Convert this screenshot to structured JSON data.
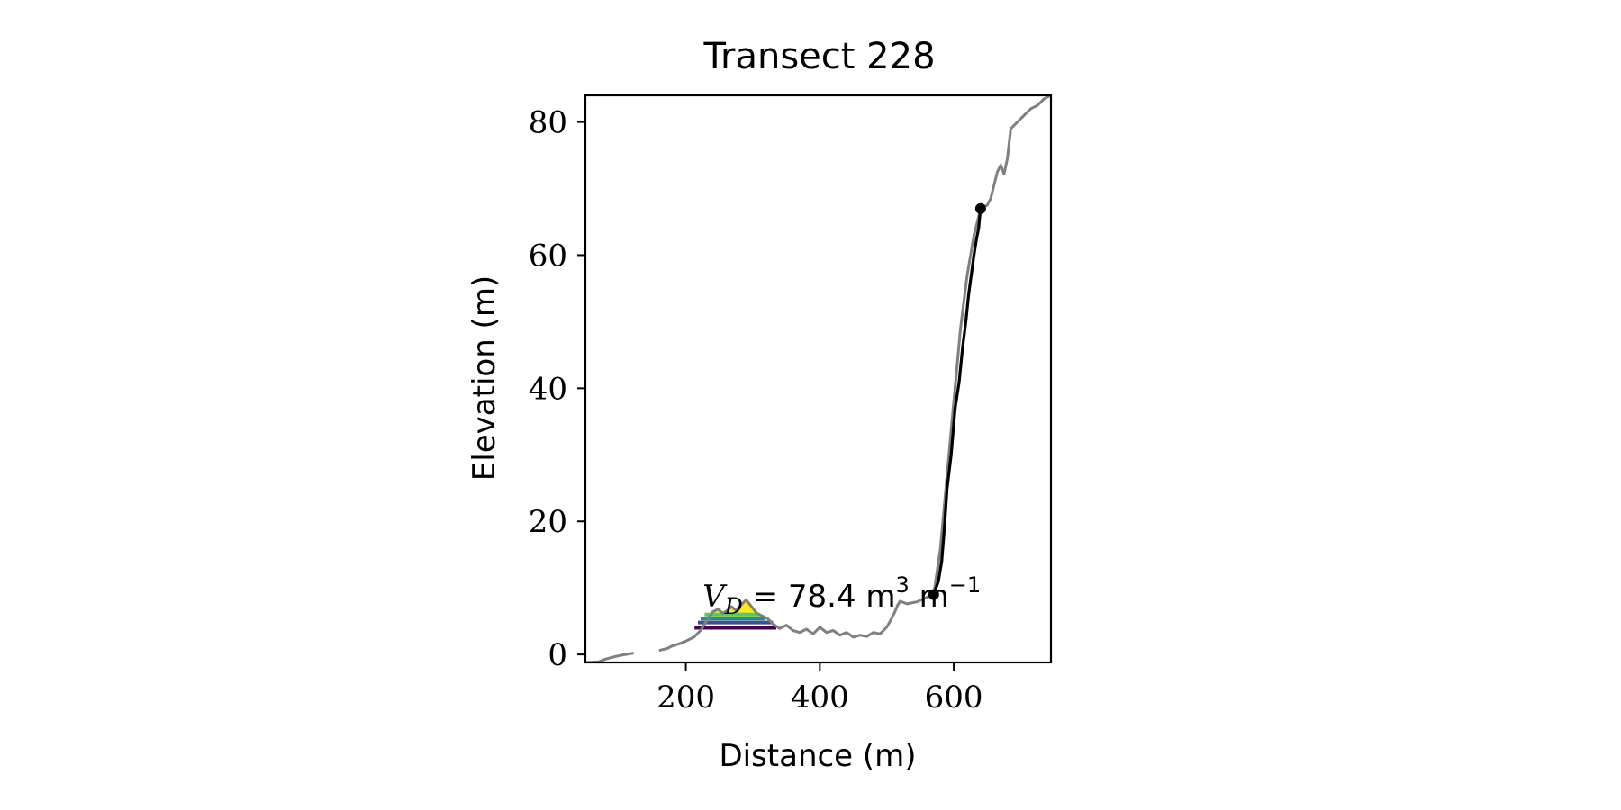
{
  "chart_data": {
    "type": "line",
    "title": "Transect 228",
    "xlabel": "Distance (m)",
    "ylabel": "Elevation (m)",
    "xlim": [
      50,
      745
    ],
    "ylim": [
      -1.2,
      84
    ],
    "xticks": [
      200,
      400,
      600
    ],
    "yticks": [
      0,
      20,
      40,
      60,
      80
    ],
    "grid": false,
    "annotation": {
      "symbol": "V",
      "subscript": "D",
      "text": "= 78.4 m",
      "exp1": "3",
      "unit2": "m",
      "exp2": "−1",
      "x": 225,
      "y": 7.2
    },
    "colors": {
      "profile": "#808080",
      "fit": "#000000",
      "shade": "#cccccc",
      "levels": [
        "#440154",
        "#21918c",
        "#3b528b",
        "#5ec962",
        "#fde725"
      ]
    },
    "series": [
      {
        "role": "profile-segment-1",
        "x": [
          50,
          70,
          80,
          95,
          110,
          122
        ],
        "y": [
          -1.2,
          -1.1,
          -0.7,
          -0.3,
          0.0,
          0.2
        ]
      },
      {
        "role": "profile-segment-2",
        "x": [
          160,
          172,
          180,
          190,
          200,
          212,
          222,
          232,
          240,
          248,
          255,
          262,
          268,
          275,
          282,
          290,
          298,
          306,
          314,
          322,
          330,
          340,
          350,
          360,
          370,
          380,
          390,
          400,
          410,
          420,
          430,
          440,
          450,
          460,
          470,
          480,
          490,
          500,
          506,
          512,
          516,
          520,
          530,
          545,
          560,
          570
        ],
        "y": [
          0.6,
          0.9,
          1.3,
          1.6,
          2.0,
          2.6,
          3.6,
          5.2,
          6.4,
          6.8,
          6.2,
          6.6,
          7.2,
          6.6,
          7.4,
          8.2,
          7.2,
          6.2,
          5.8,
          5.4,
          4.6,
          3.9,
          4.4,
          3.6,
          3.3,
          3.8,
          3.1,
          4.1,
          3.3,
          3.6,
          2.9,
          3.3,
          2.6,
          2.9,
          2.7,
          3.3,
          3.1,
          4.1,
          5.2,
          6.4,
          7.4,
          8.0,
          7.6,
          7.9,
          8.6,
          9.0
        ]
      },
      {
        "role": "profile-segment-3",
        "x": [
          570,
          580,
          590,
          600,
          610,
          620,
          630,
          640,
          650,
          655,
          660,
          665,
          670,
          675,
          680,
          685,
          690,
          697,
          705,
          715,
          725,
          735,
          745
        ],
        "y": [
          9.0,
          16,
          27,
          38,
          49,
          57,
          63,
          67,
          67.5,
          68.5,
          70.5,
          72.5,
          73.5,
          72.2,
          74.5,
          79,
          79.5,
          80.2,
          81,
          82,
          82.5,
          83.5,
          84
        ]
      }
    ],
    "fit_line": {
      "x": [
        570,
        577,
        582,
        586,
        590,
        596,
        602,
        608,
        613,
        618,
        622,
        626,
        630,
        634,
        637,
        639,
        640
      ],
      "y": [
        9.0,
        11,
        14,
        19,
        25,
        30,
        37,
        41,
        46,
        50,
        54,
        57,
        60,
        62.5,
        64,
        66,
        67
      ]
    },
    "endpoints": [
      {
        "x": 570,
        "y": 9.0
      },
      {
        "x": 640,
        "y": 67.0
      }
    ],
    "levels": [
      {
        "x0": 213,
        "x1": 335,
        "y": 4.0
      },
      {
        "x0": 218,
        "x1": 330,
        "y": 4.8
      },
      {
        "x0": 222,
        "x1": 318,
        "y": 5.4
      },
      {
        "x0": 228,
        "x1": 310,
        "y": 6.0
      }
    ]
  }
}
